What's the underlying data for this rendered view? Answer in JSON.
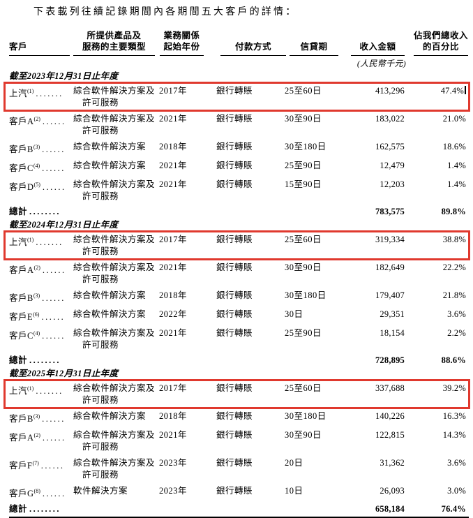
{
  "title": "下表載列往績記錄期間內各期間五大客戶的詳情：",
  "columns": {
    "customer": "客戶",
    "type_l1": "所提供產品及",
    "type_l2": "服務的主要類型",
    "year_l1": "業務關係",
    "year_l2": "起始年份",
    "payment": "付款方式",
    "credit": "信貸期",
    "revenue": "收入金額",
    "revenue_note": "(人民幣千元)",
    "pct_l1": "佔我們總收入",
    "pct_l2": "的百分比"
  },
  "total_label": "總計",
  "total_dots": "........",
  "colors": {
    "highlight_border": "#e0392e",
    "text": "#000000",
    "rule": "#000000"
  },
  "sections": [
    {
      "header": "截至2023年12月31日止年度",
      "rows": [
        {
          "name": "上汽",
          "sup": "(1)",
          "dots": ".......",
          "type": [
            "綜合軟件解決方案及",
            "許可服務"
          ],
          "year": "2017年",
          "payment": "銀行轉賬",
          "credit": "25至60日",
          "revenue": "413,296",
          "pct": "47.4%",
          "highlighted": true,
          "caret": true
        },
        {
          "name": "客戶A",
          "sup": "(2)",
          "dots": "......",
          "type": [
            "綜合軟件解決方案及",
            "許可服務"
          ],
          "year": "2021年",
          "payment": "銀行轉賬",
          "credit": "30至90日",
          "revenue": "183,022",
          "pct": "21.0%",
          "highlighted": false,
          "caret": false
        },
        {
          "name": "客戶B",
          "sup": "(3)",
          "dots": "......",
          "type": [
            "綜合軟件解決方案"
          ],
          "year": "2018年",
          "payment": "銀行轉賬",
          "credit": "30至180日",
          "revenue": "162,575",
          "pct": "18.6%",
          "highlighted": false,
          "caret": false
        },
        {
          "name": "客戶C",
          "sup": "(4)",
          "dots": "......",
          "type": [
            "綜合軟件解決方案"
          ],
          "year": "2021年",
          "payment": "銀行轉賬",
          "credit": "25至90日",
          "revenue": "12,479",
          "pct": "1.4%",
          "highlighted": false,
          "caret": false
        },
        {
          "name": "客戶D",
          "sup": "(5)",
          "dots": "......",
          "type": [
            "綜合軟件解決方案及",
            "許可服務"
          ],
          "year": "2021年",
          "payment": "銀行轉賬",
          "credit": "15至90日",
          "revenue": "12,203",
          "pct": "1.4%",
          "highlighted": false,
          "caret": false
        }
      ],
      "total": {
        "revenue": "783,575",
        "pct": "89.8%"
      }
    },
    {
      "header": "截至2024年12月31日止年度",
      "rows": [
        {
          "name": "上汽",
          "sup": "(1)",
          "dots": ".......",
          "type": [
            "綜合軟件解決方案及",
            "許可服務"
          ],
          "year": "2017年",
          "payment": "銀行轉賬",
          "credit": "25至60日",
          "revenue": "319,334",
          "pct": "38.8%",
          "highlighted": true,
          "caret": false
        },
        {
          "name": "客戶A",
          "sup": "(2)",
          "dots": "......",
          "type": [
            "綜合軟件解決方案及",
            "許可服務"
          ],
          "year": "2021年",
          "payment": "銀行轉賬",
          "credit": "30至90日",
          "revenue": "182,649",
          "pct": "22.2%",
          "highlighted": false,
          "caret": false
        },
        {
          "name": "客戶B",
          "sup": "(3)",
          "dots": "......",
          "type": [
            "綜合軟件解決方案"
          ],
          "year": "2018年",
          "payment": "銀行轉賬",
          "credit": "30至180日",
          "revenue": "179,407",
          "pct": "21.8%",
          "highlighted": false,
          "caret": false
        },
        {
          "name": "客戶E",
          "sup": "(6)",
          "dots": "......",
          "type": [
            "綜合軟件解決方案"
          ],
          "year": "2022年",
          "payment": "銀行轉賬",
          "credit": "30日",
          "revenue": "29,351",
          "pct": "3.6%",
          "highlighted": false,
          "caret": false
        },
        {
          "name": "客戶C",
          "sup": "(4)",
          "dots": "......",
          "type": [
            "綜合軟件解決方案及",
            "許可服務"
          ],
          "year": "2021年",
          "payment": "銀行轉賬",
          "credit": "25至90日",
          "revenue": "18,154",
          "pct": "2.2%",
          "highlighted": false,
          "caret": false
        }
      ],
      "total": {
        "revenue": "728,895",
        "pct": "88.6%"
      }
    },
    {
      "header": "截至2025年12月31日止年度",
      "rows": [
        {
          "name": "上汽",
          "sup": "(1)",
          "dots": ".......",
          "type": [
            "綜合軟件解決方案及",
            "許可服務"
          ],
          "year": "2017年",
          "payment": "銀行轉賬",
          "credit": "25至60日",
          "revenue": "337,688",
          "pct": "39.2%",
          "highlighted": true,
          "caret": false
        },
        {
          "name": "客戶B",
          "sup": "(3)",
          "dots": "......",
          "type": [
            "綜合軟件解決方案"
          ],
          "year": "2018年",
          "payment": "銀行轉賬",
          "credit": "30至180日",
          "revenue": "140,226",
          "pct": "16.3%",
          "highlighted": false,
          "caret": false
        },
        {
          "name": "客戶A",
          "sup": "(2)",
          "dots": "......",
          "type": [
            "綜合軟件解決方案及",
            "許可服務"
          ],
          "year": "2021年",
          "payment": "銀行轉賬",
          "credit": "30至90日",
          "revenue": "122,815",
          "pct": "14.3%",
          "highlighted": false,
          "caret": false
        },
        {
          "name": "客戶F",
          "sup": "(7)",
          "dots": "......",
          "type": [
            "綜合軟件解決方案及",
            "許可服務"
          ],
          "year": "2023年",
          "payment": "銀行轉賬",
          "credit": "20日",
          "revenue": "31,362",
          "pct": "3.6%",
          "highlighted": false,
          "caret": false
        },
        {
          "name": "客戶G",
          "sup": "(8)",
          "dots": "......",
          "type": [
            "軟件解決方案"
          ],
          "year": "2023年",
          "payment": "銀行轉賬",
          "credit": "10日",
          "revenue": "26,093",
          "pct": "3.0%",
          "highlighted": false,
          "caret": false
        }
      ],
      "total": {
        "revenue": "658,184",
        "pct": "76.4%"
      }
    }
  ]
}
